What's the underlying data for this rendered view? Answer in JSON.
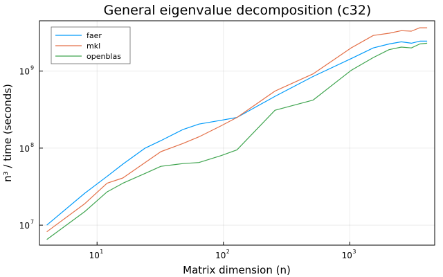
{
  "chart_data": {
    "type": "line",
    "title": "General eigenvalue decomposition (c32)",
    "xlabel": "Matrix dimension (n)",
    "ylabel": "n³ / time (seconds)",
    "xscale": "log",
    "yscale": "log",
    "xlim": [
      3.5,
      4700
    ],
    "ylim": [
      5500000,
      4500000000
    ],
    "grid": true,
    "legend_position": "top-left",
    "x_ticks": [
      {
        "value": 10,
        "base": "10",
        "exp": "1"
      },
      {
        "value": 100,
        "base": "10",
        "exp": "2"
      },
      {
        "value": 1000,
        "base": "10",
        "exp": "3"
      }
    ],
    "y_ticks": [
      {
        "value": 10000000,
        "base": "10",
        "exp": "7"
      },
      {
        "value": 100000000,
        "base": "10",
        "exp": "8"
      },
      {
        "value": 1000000000,
        "base": "10",
        "exp": "9"
      }
    ],
    "x": [
      4,
      8,
      12,
      16,
      24,
      32,
      48,
      64,
      96,
      128,
      256,
      512,
      1024,
      1536,
      2048,
      2560,
      3072,
      3584,
      4096
    ],
    "series": [
      {
        "name": "faer",
        "color": "#009AFA",
        "values": [
          10000000,
          26000000,
          43000000,
          62000000,
          100000000,
          125000000,
          175000000,
          205000000,
          230000000,
          250000000,
          470000000,
          850000000,
          1450000000,
          2000000000,
          2250000000,
          2400000000,
          2300000000,
          2450000000,
          2450000000
        ]
      },
      {
        "name": "mkl",
        "color": "#E36F47",
        "values": [
          8200000,
          19000000,
          35000000,
          41000000,
          65000000,
          90000000,
          115000000,
          140000000,
          195000000,
          250000000,
          550000000,
          920000000,
          2000000000,
          2900000000,
          3100000000,
          3350000000,
          3300000000,
          3650000000,
          3650000000
        ]
      },
      {
        "name": "openblas",
        "color": "#3EA44E",
        "values": [
          6500000,
          15000000,
          27000000,
          35000000,
          47000000,
          58000000,
          63000000,
          65000000,
          80000000,
          95000000,
          310000000,
          420000000,
          1020000000,
          1500000000,
          1900000000,
          2050000000,
          2000000000,
          2250000000,
          2300000000
        ]
      }
    ]
  }
}
